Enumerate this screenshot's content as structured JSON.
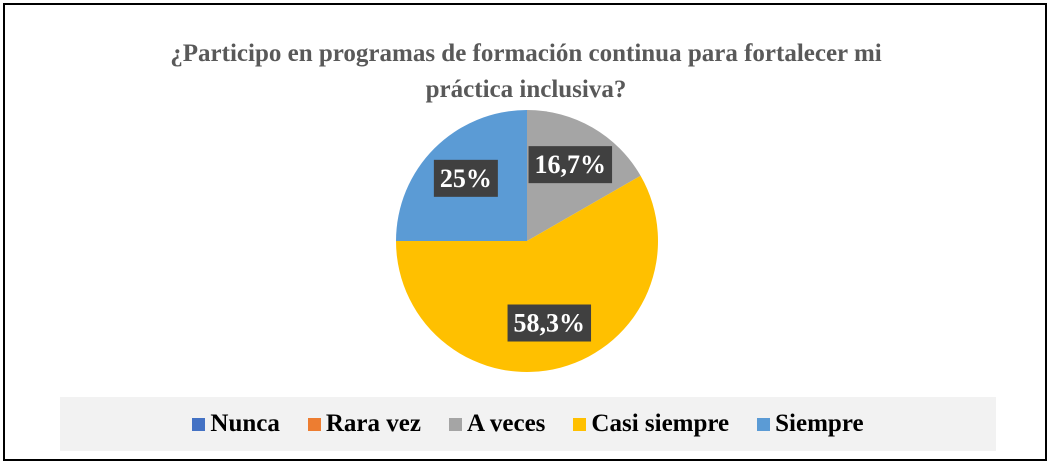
{
  "chart_data": {
    "type": "pie",
    "title": "¿Participo en programas de formación continua para fortalecer mi práctica inclusiva?",
    "categories": [
      "Nunca",
      "Rara vez",
      "A veces",
      "Casi siempre",
      "Siempre"
    ],
    "values": [
      0,
      0,
      16.7,
      58.3,
      25
    ],
    "value_labels": [
      null,
      null,
      "16,7%",
      "58,3%",
      "25%"
    ],
    "colors": [
      "#4472c4",
      "#ed7d31",
      "#a5a5a5",
      "#ffc000",
      "#5b9bd5"
    ],
    "legend": "bottom"
  }
}
